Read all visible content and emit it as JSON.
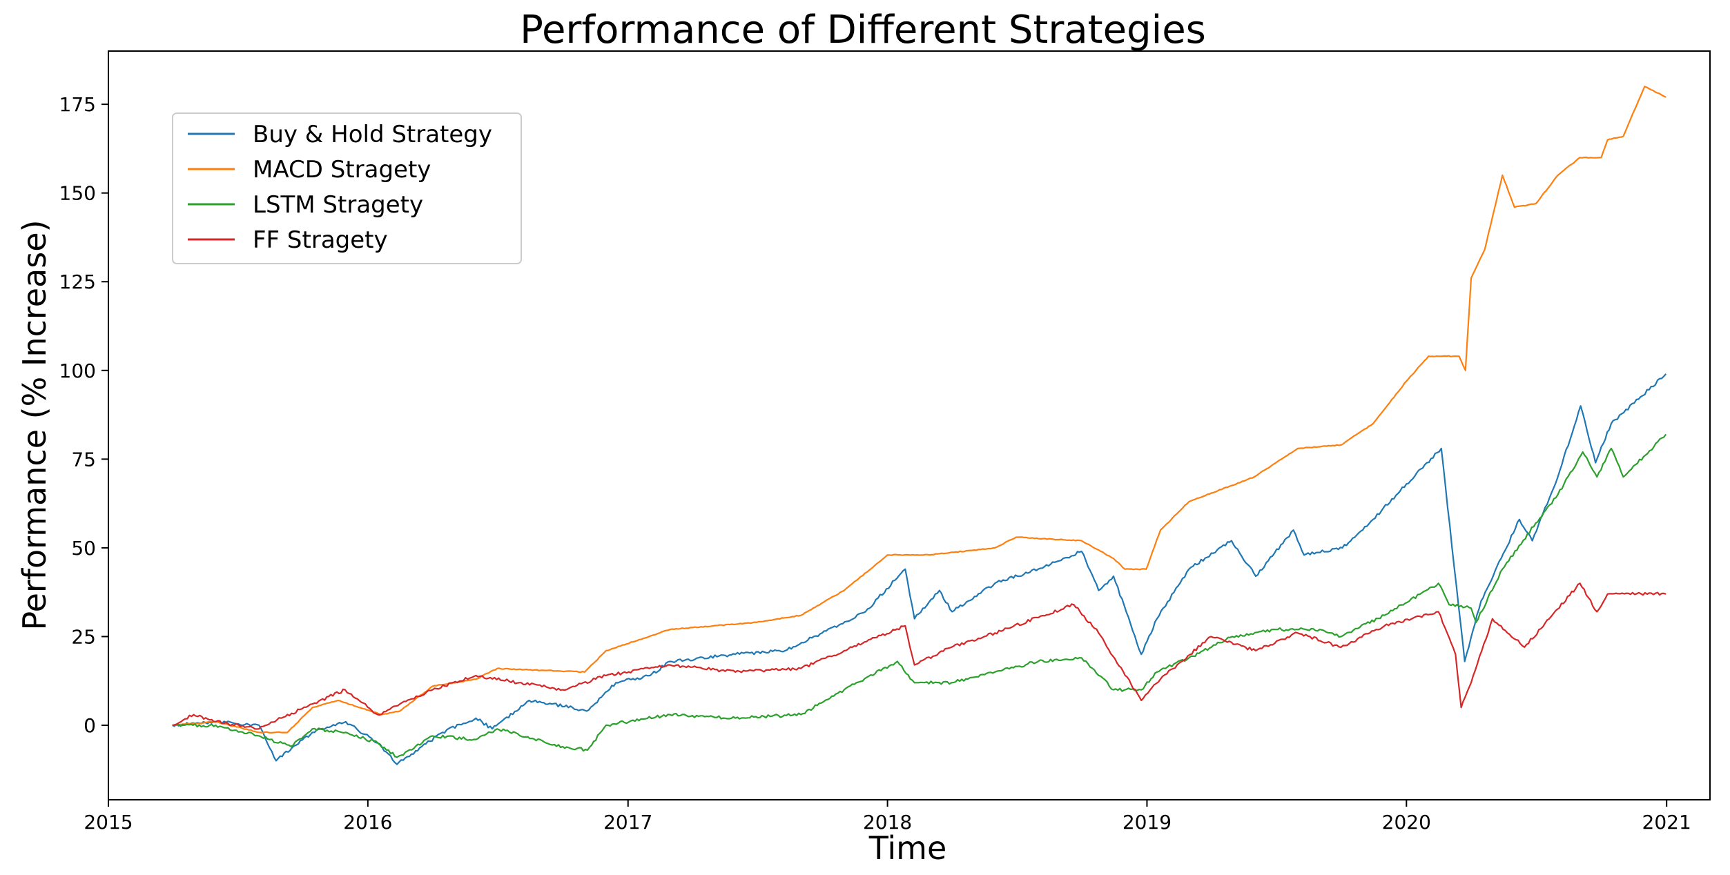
{
  "chart_data": {
    "type": "line",
    "title": "Performance of Different Strategies",
    "xlabel": "Time",
    "ylabel": "Performance (% Increase)",
    "xlim": [
      "2015-01-01",
      "2021-03-03"
    ],
    "ylim": [
      -21,
      190
    ],
    "x_ticks": [
      "2015",
      "2016",
      "2017",
      "2018",
      "2019",
      "2020",
      "2021"
    ],
    "y_ticks": [
      0,
      25,
      50,
      75,
      100,
      125,
      150,
      175
    ],
    "grid": false,
    "legend_position": "upper-left",
    "series": [
      {
        "name": "Buy & Hold Strategy",
        "color": "#1f77b4",
        "points": [
          [
            "2015-04-01",
            0
          ],
          [
            "2015-06-01",
            1
          ],
          [
            "2015-08-01",
            0
          ],
          [
            "2015-08-25",
            -10
          ],
          [
            "2015-10-15",
            -2
          ],
          [
            "2015-12-01",
            1
          ],
          [
            "2016-01-15",
            -5
          ],
          [
            "2016-02-11",
            -11
          ],
          [
            "2016-04-15",
            -2
          ],
          [
            "2016-06-01",
            2
          ],
          [
            "2016-06-24",
            -1
          ],
          [
            "2016-08-15",
            7
          ],
          [
            "2016-10-15",
            5
          ],
          [
            "2016-11-04",
            4
          ],
          [
            "2016-12-15",
            12
          ],
          [
            "2017-02-01",
            14
          ],
          [
            "2017-03-01",
            18
          ],
          [
            "2017-06-01",
            20
          ],
          [
            "2017-08-10",
            21
          ],
          [
            "2017-10-01",
            26
          ],
          [
            "2017-12-01",
            32
          ],
          [
            "2018-01-26",
            44
          ],
          [
            "2018-02-08",
            30
          ],
          [
            "2018-03-15",
            38
          ],
          [
            "2018-04-02",
            32
          ],
          [
            "2018-06-01",
            40
          ],
          [
            "2018-08-01",
            44
          ],
          [
            "2018-10-01",
            49
          ],
          [
            "2018-10-25",
            38
          ],
          [
            "2018-11-15",
            42
          ],
          [
            "2018-12-24",
            20
          ],
          [
            "2019-01-15",
            30
          ],
          [
            "2019-03-01",
            44
          ],
          [
            "2019-04-30",
            52
          ],
          [
            "2019-06-03",
            42
          ],
          [
            "2019-07-26",
            55
          ],
          [
            "2019-08-10",
            48
          ],
          [
            "2019-10-03",
            50
          ],
          [
            "2019-11-15",
            58
          ],
          [
            "2020-01-01",
            68
          ],
          [
            "2020-02-19",
            78
          ],
          [
            "2020-03-23",
            18
          ],
          [
            "2020-04-15",
            35
          ],
          [
            "2020-06-08",
            58
          ],
          [
            "2020-06-26",
            52
          ],
          [
            "2020-08-01",
            70
          ],
          [
            "2020-09-02",
            90
          ],
          [
            "2020-09-23",
            74
          ],
          [
            "2020-10-15",
            85
          ],
          [
            "2020-12-31",
            99
          ]
        ]
      },
      {
        "name": "MACD Stragety",
        "color": "#ff7f0e",
        "points": [
          [
            "2015-04-01",
            0
          ],
          [
            "2015-06-01",
            1
          ],
          [
            "2015-08-01",
            -2
          ],
          [
            "2015-09-10",
            -2
          ],
          [
            "2015-10-15",
            5
          ],
          [
            "2015-11-20",
            7
          ],
          [
            "2016-01-20",
            3
          ],
          [
            "2016-02-15",
            4
          ],
          [
            "2016-04-01",
            11
          ],
          [
            "2016-06-01",
            13
          ],
          [
            "2016-07-01",
            16
          ],
          [
            "2016-11-01",
            15
          ],
          [
            "2016-12-01",
            21
          ],
          [
            "2017-03-01",
            27
          ],
          [
            "2017-07-01",
            29
          ],
          [
            "2017-09-01",
            31
          ],
          [
            "2017-11-01",
            38
          ],
          [
            "2018-01-01",
            48
          ],
          [
            "2018-03-01",
            48
          ],
          [
            "2018-06-01",
            50
          ],
          [
            "2018-07-01",
            53
          ],
          [
            "2018-10-01",
            52
          ],
          [
            "2018-11-15",
            47
          ],
          [
            "2018-12-01",
            44
          ],
          [
            "2018-12-31",
            44
          ],
          [
            "2019-01-20",
            55
          ],
          [
            "2019-03-01",
            63
          ],
          [
            "2019-06-01",
            70
          ],
          [
            "2019-08-01",
            78
          ],
          [
            "2019-10-01",
            79
          ],
          [
            "2019-11-15",
            85
          ],
          [
            "2020-01-01",
            97
          ],
          [
            "2020-02-01",
            104
          ],
          [
            "2020-03-15",
            104
          ],
          [
            "2020-03-24",
            100
          ],
          [
            "2020-04-01",
            126
          ],
          [
            "2020-04-20",
            134
          ],
          [
            "2020-05-15",
            155
          ],
          [
            "2020-06-01",
            146
          ],
          [
            "2020-07-01",
            147
          ],
          [
            "2020-08-01",
            155
          ],
          [
            "2020-09-01",
            160
          ],
          [
            "2020-10-01",
            160
          ],
          [
            "2020-10-10",
            165
          ],
          [
            "2020-11-01",
            166
          ],
          [
            "2020-12-01",
            180
          ],
          [
            "2020-12-31",
            177
          ]
        ]
      },
      {
        "name": "LSTM Stragety",
        "color": "#2ca02c",
        "points": [
          [
            "2015-04-01",
            0
          ],
          [
            "2015-06-01",
            0
          ],
          [
            "2015-08-01",
            -3
          ],
          [
            "2015-09-15",
            -6
          ],
          [
            "2015-10-15",
            -1
          ],
          [
            "2015-12-01",
            -2
          ],
          [
            "2016-01-15",
            -5
          ],
          [
            "2016-02-11",
            -9
          ],
          [
            "2016-04-01",
            -3
          ],
          [
            "2016-06-01",
            -4
          ],
          [
            "2016-07-01",
            -1
          ],
          [
            "2016-10-01",
            -6
          ],
          [
            "2016-11-05",
            -7
          ],
          [
            "2016-12-01",
            0
          ],
          [
            "2017-03-01",
            3
          ],
          [
            "2017-06-01",
            2
          ],
          [
            "2017-09-01",
            3
          ],
          [
            "2017-11-01",
            10
          ],
          [
            "2018-01-15",
            18
          ],
          [
            "2018-02-08",
            12
          ],
          [
            "2018-04-01",
            12
          ],
          [
            "2018-06-01",
            15
          ],
          [
            "2018-08-01",
            18
          ],
          [
            "2018-10-01",
            19
          ],
          [
            "2018-11-15",
            10
          ],
          [
            "2018-12-24",
            10
          ],
          [
            "2019-01-15",
            15
          ],
          [
            "2019-03-01",
            19
          ],
          [
            "2019-05-01",
            25
          ],
          [
            "2019-07-01",
            27
          ],
          [
            "2019-09-01",
            27
          ],
          [
            "2019-10-01",
            25
          ],
          [
            "2019-12-01",
            31
          ],
          [
            "2020-02-15",
            40
          ],
          [
            "2020-03-01",
            34
          ],
          [
            "2020-04-01",
            33
          ],
          [
            "2020-04-08",
            29
          ],
          [
            "2020-05-15",
            44
          ],
          [
            "2020-07-01",
            57
          ],
          [
            "2020-08-01",
            65
          ],
          [
            "2020-09-05",
            77
          ],
          [
            "2020-09-25",
            70
          ],
          [
            "2020-10-15",
            78
          ],
          [
            "2020-11-01",
            70
          ],
          [
            "2020-12-31",
            82
          ]
        ]
      },
      {
        "name": "FF Stragety",
        "color": "#d62728",
        "points": [
          [
            "2015-04-01",
            0
          ],
          [
            "2015-05-01",
            3
          ],
          [
            "2015-06-01",
            1
          ],
          [
            "2015-08-01",
            -1
          ],
          [
            "2015-09-01",
            2
          ],
          [
            "2015-10-15",
            6
          ],
          [
            "2015-11-30",
            10
          ],
          [
            "2016-01-15",
            3
          ],
          [
            "2016-02-15",
            6
          ],
          [
            "2016-04-01",
            10
          ],
          [
            "2016-06-01",
            14
          ],
          [
            "2016-08-01",
            12
          ],
          [
            "2016-10-01",
            10
          ],
          [
            "2016-12-01",
            14
          ],
          [
            "2017-03-01",
            17
          ],
          [
            "2017-06-01",
            15
          ],
          [
            "2017-09-01",
            16
          ],
          [
            "2017-11-01",
            21
          ],
          [
            "2018-01-26",
            28
          ],
          [
            "2018-02-08",
            17
          ],
          [
            "2018-04-01",
            22
          ],
          [
            "2018-06-01",
            26
          ],
          [
            "2018-09-20",
            34
          ],
          [
            "2018-10-25",
            26
          ],
          [
            "2018-12-24",
            7
          ],
          [
            "2019-01-20",
            13
          ],
          [
            "2019-04-01",
            25
          ],
          [
            "2019-06-03",
            21
          ],
          [
            "2019-08-01",
            26
          ],
          [
            "2019-10-01",
            22
          ],
          [
            "2019-12-01",
            28
          ],
          [
            "2020-02-15",
            32
          ],
          [
            "2020-03-10",
            20
          ],
          [
            "2020-03-18",
            5
          ],
          [
            "2020-04-01",
            12
          ],
          [
            "2020-05-01",
            30
          ],
          [
            "2020-06-15",
            22
          ],
          [
            "2020-09-01",
            40
          ],
          [
            "2020-09-25",
            32
          ],
          [
            "2020-10-10",
            37
          ],
          [
            "2020-12-31",
            37
          ]
        ]
      }
    ]
  }
}
